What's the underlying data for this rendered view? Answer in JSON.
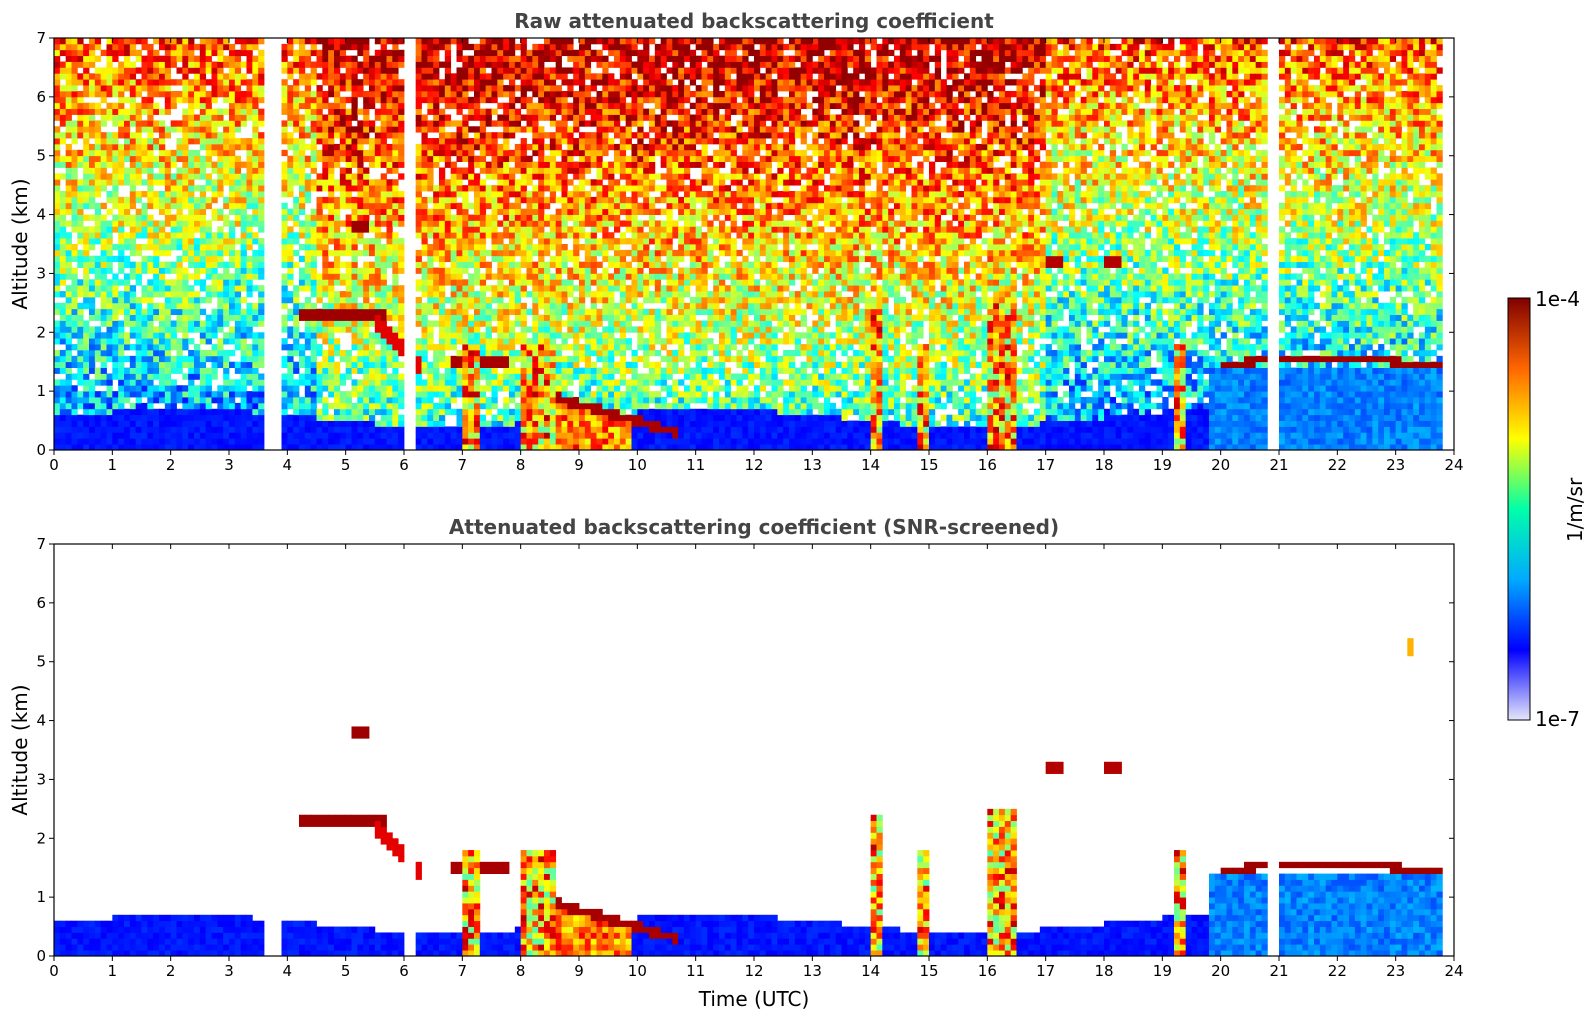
{
  "chart_data": [
    {
      "type": "heatmap",
      "title": "Raw attenuated backscattering coefficient",
      "xlabel": "",
      "ylabel": "Altitude (km)",
      "xlim": [
        0,
        24
      ],
      "ylim": [
        0,
        7
      ],
      "xticks": [
        "0",
        "1",
        "2",
        "3",
        "4",
        "5",
        "6",
        "7",
        "8",
        "9",
        "10",
        "11",
        "12",
        "13",
        "14",
        "15",
        "16",
        "17",
        "18",
        "19",
        "20",
        "21",
        "22",
        "23",
        "24"
      ],
      "yticks": [
        "0",
        "1",
        "2",
        "3",
        "4",
        "5",
        "6",
        "7"
      ],
      "colorscale": "jet",
      "screened": false,
      "features": [
        {
          "kind": "boundary_layer",
          "x": [
            0,
            23.8
          ],
          "y_top_km": 0.6
        },
        {
          "kind": "aerosol_layer",
          "x": [
            4.9,
            5.7
          ],
          "altitude_km": 2.3
        },
        {
          "kind": "aerosol_layer",
          "x": [
            7.3,
            7.8
          ],
          "altitude_km": 1.5
        },
        {
          "kind": "descending_layer",
          "x": [
            8.5,
            10.5
          ],
          "altitude_km": [
            1.0,
            0.3
          ]
        },
        {
          "kind": "cloud_layer",
          "x": [
            20.0,
            23.8
          ],
          "altitude_km": 1.55
        },
        {
          "kind": "elevated_feature",
          "x": [
            5.1,
            5.4
          ],
          "altitude_km": 3.8
        },
        {
          "kind": "elevated_feature",
          "x": [
            23.2,
            23.35
          ],
          "altitude_km": 5.3
        },
        {
          "kind": "precipitation_column",
          "x": [
            16.0,
            16.5
          ],
          "altitude_km": [
            0,
            2.5
          ]
        }
      ]
    },
    {
      "type": "heatmap",
      "title": "Attenuated backscattering coefficient (SNR-screened)",
      "xlabel": "Time (UTC)",
      "ylabel": "Altitude (km)",
      "xlim": [
        0,
        24
      ],
      "ylim": [
        0,
        7
      ],
      "xticks": [
        "0",
        "1",
        "2",
        "3",
        "4",
        "5",
        "6",
        "7",
        "8",
        "9",
        "10",
        "11",
        "12",
        "13",
        "14",
        "15",
        "16",
        "17",
        "18",
        "19",
        "20",
        "21",
        "22",
        "23",
        "24"
      ],
      "yticks": [
        "0",
        "1",
        "2",
        "3",
        "4",
        "5",
        "6",
        "7"
      ],
      "colorscale": "jet",
      "screened": true
    }
  ],
  "colorbar": {
    "min_label": "1e-7",
    "max_label": "1e-4",
    "unit": "1/m/sr",
    "scale": "log",
    "colors": [
      "#e6e6fa",
      "#0000ff",
      "#00aaff",
      "#00ffaa",
      "#ffff00",
      "#ff6600",
      "#7f0000"
    ]
  }
}
